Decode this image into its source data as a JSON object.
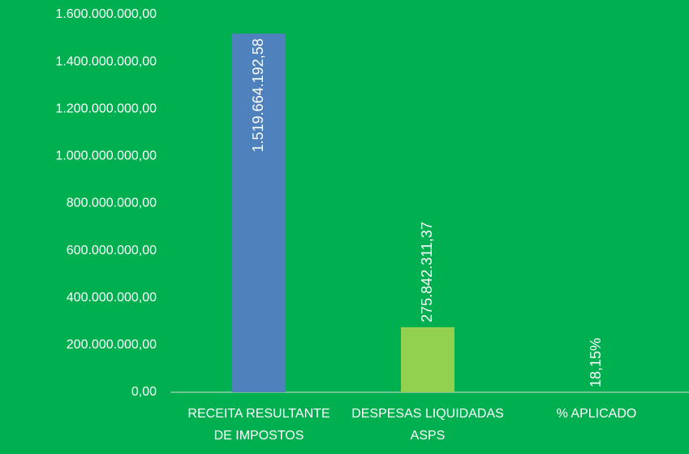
{
  "chart_data": {
    "type": "bar",
    "categories": [
      "RECEITA RESULTANTE DE IMPOSTOS",
      "DESPESAS LIQUIDADAS ASPS",
      "% APLICADO"
    ],
    "values": [
      1519664192.58,
      275842311.37,
      18.15
    ],
    "value_labels": [
      "1.519.664.192,58",
      "275.842.311,37",
      "18,15%"
    ],
    "colors": [
      "#4f81bd",
      "#92d050",
      "#00b050"
    ],
    "ylim": [
      0,
      1600000000
    ],
    "yticks": [
      {
        "value": 0,
        "label": "0,00"
      },
      {
        "value": 200000000,
        "label": "200.000.000,00"
      },
      {
        "value": 400000000,
        "label": "400.000.000,00"
      },
      {
        "value": 600000000,
        "label": "600.000.000,00"
      },
      {
        "value": 800000000,
        "label": "800.000.000,00"
      },
      {
        "value": 1000000000,
        "label": "1.000.000.000,00"
      },
      {
        "value": 1200000000,
        "label": "1.200.000.000,00"
      },
      {
        "value": 1400000000,
        "label": "1.400.000.000,00"
      },
      {
        "value": 1600000000,
        "label": "1.600.000.000,00"
      }
    ],
    "grid": false
  }
}
